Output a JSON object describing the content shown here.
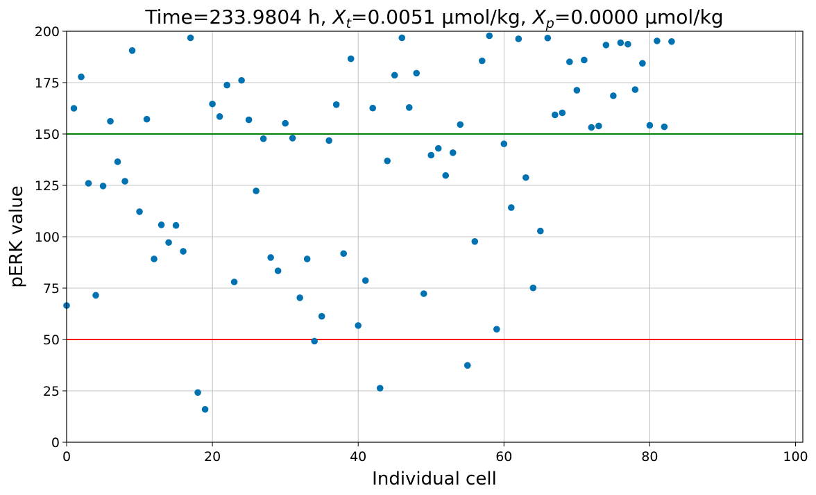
{
  "chart_data": {
    "type": "scatter",
    "title": {
      "prefix": "Time=233.9804 h, ",
      "xt_var": "X",
      "xt_sub": "t",
      "xt_value": "=0.0051 µmol/kg, ",
      "xp_var": "X",
      "xp_sub": "p",
      "xp_value": "=0.0000 µmol/kg"
    },
    "xlabel": "Individual cell",
    "ylabel": "pERK value",
    "xlim": [
      0,
      101
    ],
    "ylim": [
      0,
      200
    ],
    "xticks": [
      "0",
      "20",
      "40",
      "60",
      "80",
      "100"
    ],
    "yticks": [
      "0",
      "25",
      "50",
      "75",
      "100",
      "125",
      "150",
      "175",
      "200"
    ],
    "grid": true,
    "point_color": "#0072B2",
    "hlines": [
      {
        "y": 150,
        "color": "#008000"
      },
      {
        "y": 50,
        "color": "#FF0000"
      }
    ],
    "points": [
      [
        0,
        66.5
      ],
      [
        1,
        162.5
      ],
      [
        2,
        177.8
      ],
      [
        3,
        126.0
      ],
      [
        4,
        71.5
      ],
      [
        5,
        124.7
      ],
      [
        6,
        156.2
      ],
      [
        7,
        136.5
      ],
      [
        8,
        127.0
      ],
      [
        9,
        190.6
      ],
      [
        10,
        112.2
      ],
      [
        11,
        157.2
      ],
      [
        12,
        89.2
      ],
      [
        13,
        105.8
      ],
      [
        14,
        97.2
      ],
      [
        15,
        105.5
      ],
      [
        16,
        92.9
      ],
      [
        17,
        196.8
      ],
      [
        18,
        24.2
      ],
      [
        19,
        16.0
      ],
      [
        20,
        164.6
      ],
      [
        21,
        158.5
      ],
      [
        22,
        173.8
      ],
      [
        23,
        78.0
      ],
      [
        24,
        176.1
      ],
      [
        25,
        156.9
      ],
      [
        26,
        122.3
      ],
      [
        27,
        147.7
      ],
      [
        28,
        89.9
      ],
      [
        29,
        83.4
      ],
      [
        30,
        155.2
      ],
      [
        31,
        148.0
      ],
      [
        32,
        70.3
      ],
      [
        33,
        89.2
      ],
      [
        34,
        49.2
      ],
      [
        35,
        61.3
      ],
      [
        36,
        146.8
      ],
      [
        37,
        164.3
      ],
      [
        38,
        91.8
      ],
      [
        39,
        186.6
      ],
      [
        40,
        56.8
      ],
      [
        41,
        78.7
      ],
      [
        42,
        162.6
      ],
      [
        43,
        26.3
      ],
      [
        44,
        136.9
      ],
      [
        45,
        178.6
      ],
      [
        46,
        196.8
      ],
      [
        47,
        162.9
      ],
      [
        48,
        179.6
      ],
      [
        49,
        72.3
      ],
      [
        50,
        139.7
      ],
      [
        51,
        143.0
      ],
      [
        52,
        129.8
      ],
      [
        53,
        140.9
      ],
      [
        54,
        154.6
      ],
      [
        55,
        37.4
      ],
      [
        56,
        97.7
      ],
      [
        57,
        185.6
      ],
      [
        58,
        197.8
      ],
      [
        59,
        55.0
      ],
      [
        60,
        145.2
      ],
      [
        61,
        114.2
      ],
      [
        62,
        196.3
      ],
      [
        63,
        128.8
      ],
      [
        64,
        75.1
      ],
      [
        65,
        102.8
      ],
      [
        66,
        196.7
      ],
      [
        67,
        159.3
      ],
      [
        68,
        160.3
      ],
      [
        69,
        185.1
      ],
      [
        70,
        171.3
      ],
      [
        71,
        186.0
      ],
      [
        72,
        153.2
      ],
      [
        73,
        153.9
      ],
      [
        74,
        193.3
      ],
      [
        75,
        168.6
      ],
      [
        76,
        194.4
      ],
      [
        77,
        193.7
      ],
      [
        78,
        171.6
      ],
      [
        79,
        184.4
      ],
      [
        80,
        154.2
      ],
      [
        81,
        195.3
      ],
      [
        82,
        153.5
      ],
      [
        83,
        195.0
      ]
    ]
  }
}
